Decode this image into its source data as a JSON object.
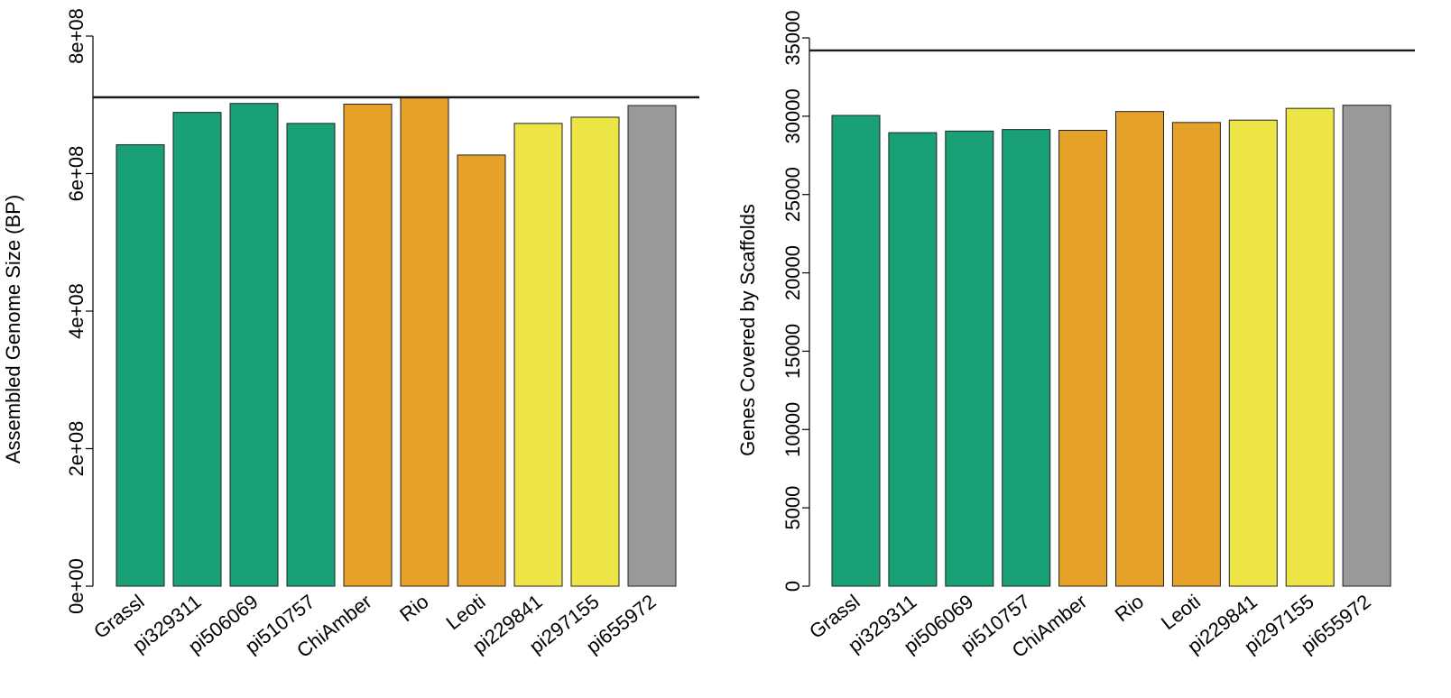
{
  "colors": {
    "green": "#19a077",
    "orange": "#e6a12a",
    "yellow": "#ede545",
    "gray": "#999999"
  },
  "chart_data": [
    {
      "type": "bar",
      "title": "",
      "xlabel": "",
      "ylabel": "Assembled Genome Size (BP)",
      "ylim": [
        0,
        800000000
      ],
      "yticks": [
        0,
        200000000,
        400000000,
        600000000,
        800000000
      ],
      "ytick_labels": [
        "0e+00",
        "2e+08",
        "4e+08",
        "6e+08",
        "8e+08"
      ],
      "reference_line": 711000000,
      "categories": [
        "Grassl",
        "pi329311",
        "pi506069",
        "pi510757",
        "ChiAmber",
        "Rio",
        "Leoti",
        "pi229841",
        "pi297155",
        "pi655972"
      ],
      "values": [
        642000000,
        689000000,
        702000000,
        673000000,
        701000000,
        711000000,
        627000000,
        673000000,
        682000000,
        699000000
      ],
      "bar_colors": [
        "green",
        "green",
        "green",
        "green",
        "orange",
        "orange",
        "orange",
        "yellow",
        "yellow",
        "gray"
      ]
    },
    {
      "type": "bar",
      "title": "",
      "xlabel": "",
      "ylabel": "Genes Covered by Scaffolds",
      "ylim": [
        0,
        35000
      ],
      "yticks": [
        0,
        5000,
        10000,
        15000,
        20000,
        25000,
        30000,
        35000
      ],
      "ytick_labels": [
        "0",
        "5000",
        "10000",
        "15000",
        "20000",
        "25000",
        "30000",
        "35000"
      ],
      "reference_line": 34200,
      "categories": [
        "Grassl",
        "pi329311",
        "pi506069",
        "pi510757",
        "ChiAmber",
        "Rio",
        "Leoti",
        "pi229841",
        "pi297155",
        "pi655972"
      ],
      "values": [
        30050,
        28950,
        29050,
        29150,
        29100,
        30300,
        29600,
        29750,
        30500,
        30700
      ],
      "bar_colors": [
        "green",
        "green",
        "green",
        "green",
        "orange",
        "orange",
        "orange",
        "yellow",
        "yellow",
        "gray"
      ]
    }
  ]
}
